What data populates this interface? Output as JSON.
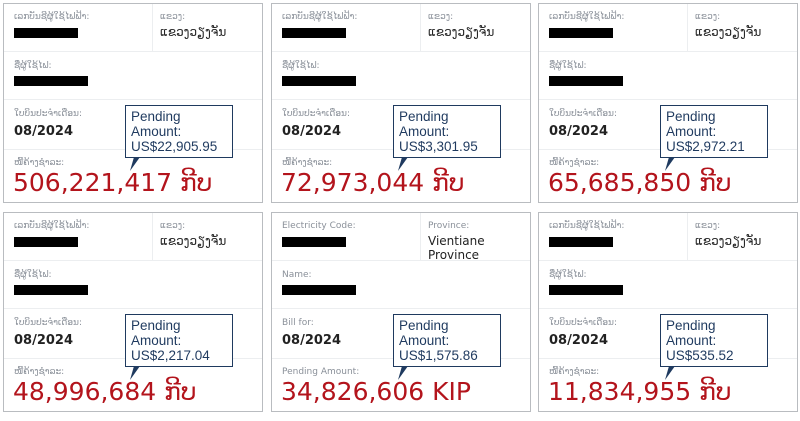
{
  "cards": [
    {
      "code_label": "ເລກບັນຊີຜູ້ໃຊ້ໄຟຟ້າ:",
      "province_label": "ແຂວງ:",
      "province": "ແຂວງວຽງຈັນ",
      "name_label": "ຊື່ຜູ້ໃຊ້ໄຟ:",
      "bill_label": "ໃບບິນປະຈຳເດືອນ:",
      "bill_month": "08/2024",
      "pending_label": "ໜີ້ຄ້າງຊຳລະ:",
      "amount": "506,221,417 ກີບ",
      "callout_title": "Pending Amount:",
      "callout_usd": "US$22,905.95"
    },
    {
      "code_label": "ເລກບັນຊີຜູ້ໃຊ້ໄຟຟ້າ:",
      "province_label": "ແຂວງ:",
      "province": "ແຂວງວຽງຈັນ",
      "name_label": "ຊື່ຜູ້ໃຊ້ໄຟ:",
      "bill_label": "ໃບບິນປະຈຳເດືອນ:",
      "bill_month": "08/2024",
      "pending_label": "ໜີ້ຄ້າງຊຳລະ:",
      "amount": "72,973,044 ກີບ",
      "callout_title": "Pending Amount:",
      "callout_usd": "US$3,301.95"
    },
    {
      "code_label": "ເລກບັນຊີຜູ້ໃຊ້ໄຟຟ້າ:",
      "province_label": "ແຂວງ:",
      "province": "ແຂວງວຽງຈັນ",
      "name_label": "ຊື່ຜູ້ໃຊ້ໄຟ:",
      "bill_label": "ໃບບິນປະຈຳເດືອນ:",
      "bill_month": "08/2024",
      "pending_label": "ໜີ້ຄ້າງຊຳລະ:",
      "amount": "65,685,850 ກີບ",
      "callout_title": "Pending Amount:",
      "callout_usd": "US$2,972.21"
    },
    {
      "code_label": "ເລກບັນຊີຜູ້ໃຊ້ໄຟຟ້າ:",
      "province_label": "ແຂວງ:",
      "province": "ແຂວງວຽງຈັນ",
      "name_label": "ຊື່ຜູ້ໃຊ້ໄຟ:",
      "bill_label": "ໃບບິນປະຈຳເດືອນ:",
      "bill_month": "08/2024",
      "pending_label": "ໜີ້ຄ້າງຊຳລະ:",
      "amount": "48,996,684 ກີບ",
      "callout_title": "Pending Amount:",
      "callout_usd": "US$2,217.04"
    },
    {
      "code_label": "Electricity Code:",
      "province_label": "Province:",
      "province": "Vientiane Province",
      "name_label": "Name:",
      "bill_label": "Bill for:",
      "bill_month": "08/2024",
      "pending_label": "Pending Amount:",
      "amount": "34,826,606 KIP",
      "callout_title": "Pending Amount:",
      "callout_usd": "US$1,575.86"
    },
    {
      "code_label": "ເລກບັນຊີຜູ້ໃຊ້ໄຟຟ້າ:",
      "province_label": "ແຂວງ:",
      "province": "ແຂວງວຽງຈັນ",
      "name_label": "ຊື່ຜູ້ໃຊ້ໄຟ:",
      "bill_label": "ໃບບິນປະຈຳເດືອນ:",
      "bill_month": "08/2024",
      "pending_label": "ໜີ້ຄ້າງຊຳລະ:",
      "amount": "11,834,955 ກີບ",
      "callout_title": "Pending Amount:",
      "callout_usd": "US$535.52"
    }
  ],
  "colors": {
    "amount": "#b3141c",
    "callout": "#1f3a5f",
    "border": "#b9bcc0"
  }
}
